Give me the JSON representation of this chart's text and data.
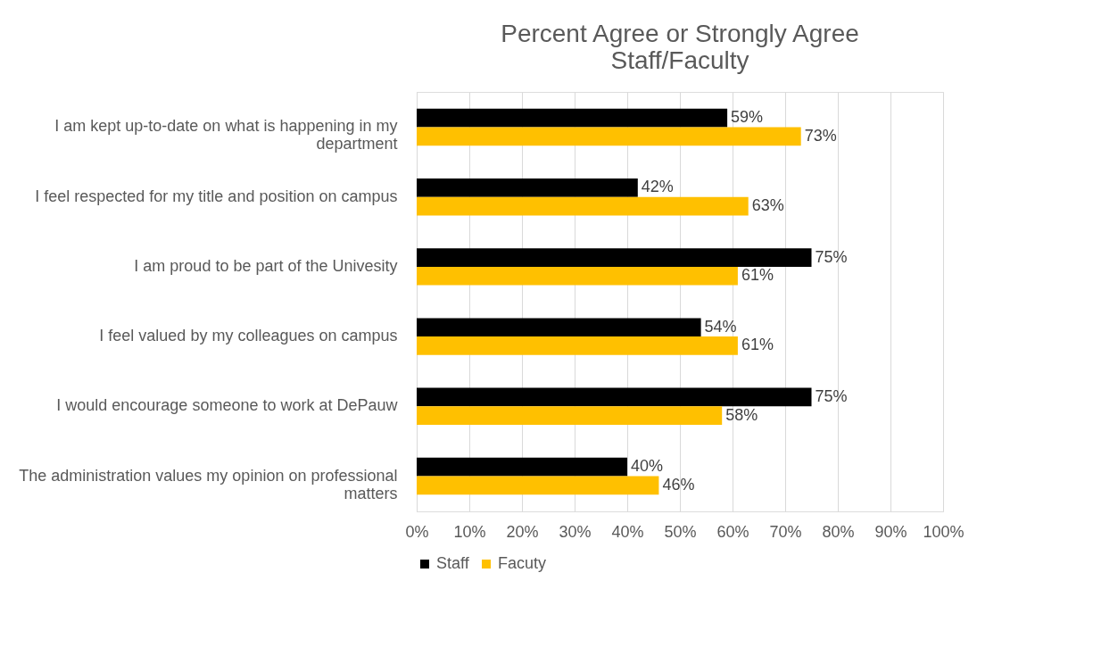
{
  "chart_data": {
    "type": "bar",
    "orientation": "horizontal",
    "title": "Percent Agree or Strongly Agree\nStaff/Faculty",
    "categories": [
      "I am kept up-to-date on what is happening in my department",
      "I feel respected for my title and position on campus",
      "I am proud to be part of the Univesity",
      "I feel valued by my colleagues on campus",
      "I would encourage someone to work at DePauw",
      "The administration values my opinion on professional matters"
    ],
    "series": [
      {
        "name": "Staff",
        "color": "#000000",
        "values": [
          59,
          42,
          75,
          54,
          75,
          40
        ],
        "value_labels": [
          "59%",
          "42%",
          "75%",
          "54%",
          "75%",
          "40%"
        ]
      },
      {
        "name": "Facuty",
        "color": "#ffc000",
        "values": [
          73,
          63,
          61,
          61,
          58,
          46
        ],
        "value_labels": [
          "73%",
          "63%",
          "61%",
          "61%",
          "58%",
          "46%"
        ]
      }
    ],
    "xlim": [
      0,
      100
    ],
    "xticks": [
      {
        "value": 0,
        "label": "0%"
      },
      {
        "value": 10,
        "label": "10%"
      },
      {
        "value": 20,
        "label": "20%"
      },
      {
        "value": 30,
        "label": "30%"
      },
      {
        "value": 40,
        "label": "40%"
      },
      {
        "value": 50,
        "label": "50%"
      },
      {
        "value": 60,
        "label": "60%"
      },
      {
        "value": 70,
        "label": "70%"
      },
      {
        "value": 80,
        "label": "80%"
      },
      {
        "value": 90,
        "label": "90%"
      },
      {
        "value": 100,
        "label": "100%"
      }
    ],
    "grid": "x",
    "legend": "bottom"
  }
}
